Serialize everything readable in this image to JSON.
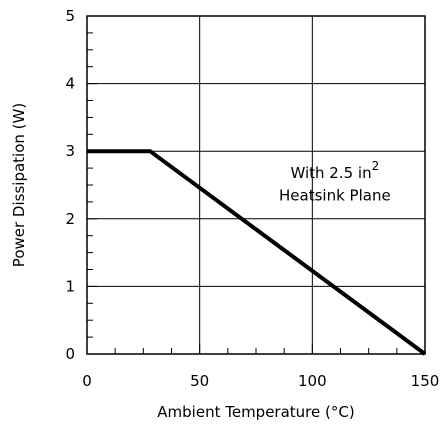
{
  "chart_data": {
    "type": "line",
    "xlabel": "Ambient Temperature (°C)",
    "ylabel": "Power Dissipation (W)",
    "xlim": [
      0,
      150
    ],
    "ylim": [
      0,
      5
    ],
    "x_ticks": [
      "0",
      "50",
      "100",
      "150"
    ],
    "y_ticks": [
      "0",
      "1",
      "2",
      "3",
      "4",
      "5"
    ],
    "grid": true,
    "series": [
      {
        "x": [
          0,
          28,
          150
        ],
        "y": [
          3,
          3,
          0
        ]
      }
    ],
    "annotation": {
      "line1_prefix": "With 2.5 in",
      "line1_sup": "2",
      "line2": "Heatsink Plane",
      "x": 110,
      "y_line1": 2.6,
      "y_line2": 2.27
    }
  }
}
